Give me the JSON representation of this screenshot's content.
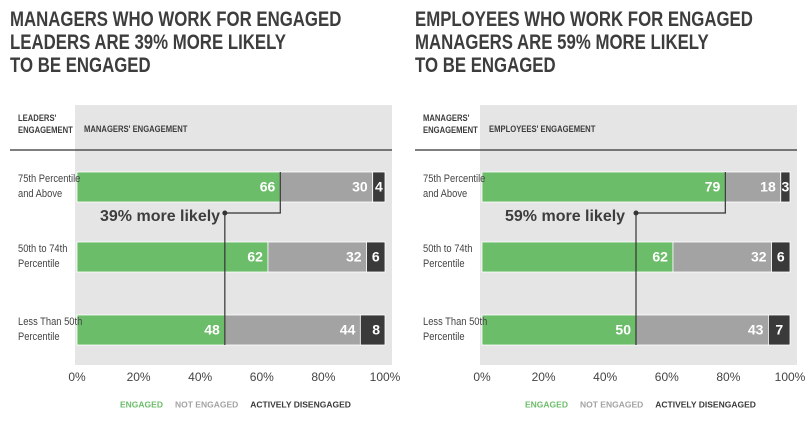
{
  "chart_data": [
    {
      "type": "bar",
      "orientation": "horizontal",
      "stacked": true,
      "title": "MANAGERS WHO WORK FOR ENGAGED\nLEADERS ARE 39% MORE LIKELY\nTO BE ENGAGED",
      "row_header": "LEADERS'\nENGAGEMENT",
      "column_header": "MANAGERS' ENGAGEMENT",
      "annotation": "39% more likely",
      "categories": [
        "75th Percentile\nand Above",
        "50th to 74th\nPercentile",
        "Less Than 50th\nPercentile"
      ],
      "series": [
        {
          "name": "ENGAGED",
          "color": "#6cbd6a",
          "values": [
            66,
            62,
            48
          ]
        },
        {
          "name": "NOT ENGAGED",
          "color": "#a3a3a3",
          "values": [
            30,
            32,
            44
          ]
        },
        {
          "name": "ACTIVELY DISENGAGED",
          "color": "#3a3a3a",
          "values": [
            4,
            6,
            8
          ]
        }
      ],
      "xlim": [
        0,
        100
      ],
      "xticks": [
        {
          "value": 0,
          "label": "0%"
        },
        {
          "value": 20,
          "label": "20%"
        },
        {
          "value": 40,
          "label": "40%"
        },
        {
          "value": 60,
          "label": "60%"
        },
        {
          "value": 80,
          "label": "80%"
        },
        {
          "value": 100,
          "label": "100%"
        }
      ],
      "legend": "bottom"
    },
    {
      "type": "bar",
      "orientation": "horizontal",
      "stacked": true,
      "title": "EMPLOYEES WHO WORK FOR ENGAGED\nMANAGERS ARE 59% MORE LIKELY\nTO BE ENGAGED",
      "row_header": "MANAGERS'\nENGAGEMENT",
      "column_header": "EMPLOYEES' ENGAGEMENT",
      "annotation": "59% more likely",
      "categories": [
        "75th Percentile\nand Above",
        "50th to 74th\nPercentile",
        "Less Than 50th\nPercentile"
      ],
      "series": [
        {
          "name": "ENGAGED",
          "color": "#6cbd6a",
          "values": [
            79,
            62,
            50
          ]
        },
        {
          "name": "NOT ENGAGED",
          "color": "#a3a3a3",
          "values": [
            18,
            32,
            43
          ]
        },
        {
          "name": "ACTIVELY DISENGAGED",
          "color": "#3a3a3a",
          "values": [
            3,
            6,
            7
          ]
        }
      ],
      "xlim": [
        0,
        100
      ],
      "xticks": [
        {
          "value": 0,
          "label": "0%"
        },
        {
          "value": 20,
          "label": "20%"
        },
        {
          "value": 40,
          "label": "40%"
        },
        {
          "value": 60,
          "label": "60%"
        },
        {
          "value": 80,
          "label": "80%"
        },
        {
          "value": 100,
          "label": "100%"
        }
      ],
      "legend": "bottom"
    }
  ]
}
